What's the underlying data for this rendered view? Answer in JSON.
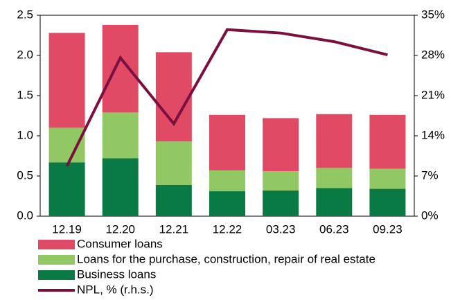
{
  "chart_data": {
    "type": "bar",
    "stacked": true,
    "categories": [
      "12.19",
      "12.20",
      "12.21",
      "12.22",
      "03.23",
      "06.23",
      "09.23"
    ],
    "series": [
      {
        "name": "Business loans",
        "color": "#0a7a45",
        "values": [
          0.67,
          0.72,
          0.39,
          0.31,
          0.32,
          0.35,
          0.34
        ]
      },
      {
        "name": "Loans for the purchase, construction, repair of real estate",
        "color": "#92c864",
        "values": [
          0.43,
          0.57,
          0.54,
          0.26,
          0.24,
          0.25,
          0.25
        ]
      },
      {
        "name": "Consumer loans",
        "color": "#e04a64",
        "values": [
          1.18,
          1.09,
          1.11,
          0.69,
          0.66,
          0.67,
          0.67
        ]
      },
      {
        "name": "NPL, % (r.h.s.)",
        "color": "#7b1040",
        "type": "line",
        "axis": "y2",
        "values": [
          8.7,
          27.6,
          16.1,
          32.5,
          31.9,
          30.4,
          28.1
        ]
      }
    ],
    "ylim": [
      0,
      2.5
    ],
    "yticks": [
      {
        "value": 0,
        "label": "0.0"
      },
      0.5,
      {
        "value": 1,
        "label": "1.0"
      },
      1.5,
      {
        "value": 2,
        "label": "2.0"
      },
      2.5
    ],
    "y2lim": [
      0,
      35
    ],
    "y2ticks": [
      {
        "value": 0,
        "label": "0%"
      },
      {
        "value": 7,
        "label": "7%"
      },
      {
        "value": 14,
        "label": "14%"
      },
      {
        "value": 21,
        "label": "21%"
      },
      {
        "value": 28,
        "label": "28%"
      },
      {
        "value": 35,
        "label": "35%"
      }
    ],
    "legend": "bottom"
  }
}
